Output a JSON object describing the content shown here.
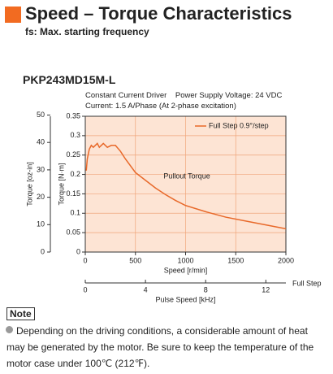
{
  "header": {
    "title": "Speed – Torque Characteristics",
    "subtitle": "fs: Max. starting frequency"
  },
  "model": "PKP243MD15M-L",
  "conditions": [
    "Constant Current Driver    Power Supply Voltage: 24 VDC",
    "Current: 1.5 A/Phase (At 2-phase excitation)"
  ],
  "chart_data": {
    "type": "line",
    "x_label": "Speed [r/min]",
    "y_label": "Torque [N·m]",
    "y2_label": "Torque [oz-in]",
    "x2_label": "Pulse Speed [kHz]",
    "x2_note": "Full Step",
    "annotation": "Pullout Torque",
    "x": [
      10,
      20,
      40,
      60,
      80,
      100,
      120,
      140,
      160,
      180,
      200,
      220,
      260,
      300,
      350,
      400,
      500,
      600,
      700,
      800,
      900,
      1000,
      1200,
      1400,
      1600,
      1800,
      2000
    ],
    "series": [
      {
        "name": "Full Step 0.9°/step",
        "color": "#e8692a",
        "values": [
          0.21,
          0.24,
          0.265,
          0.275,
          0.27,
          0.275,
          0.28,
          0.27,
          0.275,
          0.28,
          0.275,
          0.27,
          0.275,
          0.275,
          0.26,
          0.24,
          0.205,
          0.185,
          0.165,
          0.148,
          0.133,
          0.12,
          0.104,
          0.09,
          0.08,
          0.07,
          0.06
        ]
      }
    ],
    "xlim": [
      0,
      2000
    ],
    "xticks": [
      0,
      500,
      1000,
      1500,
      2000
    ],
    "ylim": [
      0,
      0.35
    ],
    "yticks": [
      0,
      0.05,
      0.1,
      0.15,
      0.2,
      0.25,
      0.3,
      0.35
    ],
    "y2lim": [
      0,
      49.56
    ],
    "y2ticks": [
      0,
      10,
      20,
      30,
      40,
      50
    ],
    "x2lim": [
      0,
      13.333
    ],
    "x2ticks": [
      0,
      4,
      8,
      12
    ],
    "grid": true,
    "legend": "top-right"
  },
  "note": {
    "label": "Note",
    "text": "Depending on the driving conditions, a considerable amount of heat may be generated by the motor. Be sure to keep the temperature of the motor case under 100℃ (212℉)."
  }
}
